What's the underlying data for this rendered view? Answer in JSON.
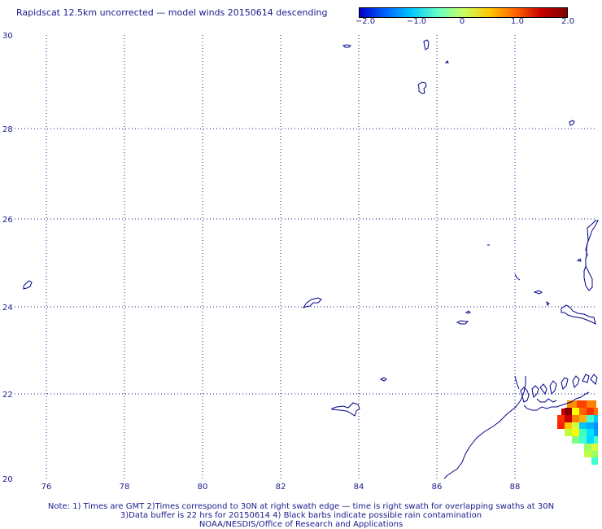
{
  "title": "Rapidscat 12.5km uncorrected — model winds 20150614 descending",
  "colorbar": {
    "ticks": [
      "−2.0",
      "−1.0",
      "0",
      "1.0",
      "2.0"
    ],
    "colors": [
      "#0000c8",
      "#0064ff",
      "#00c8ff",
      "#64ffc8",
      "#c8ff64",
      "#ffc800",
      "#ff6400",
      "#c80000",
      "#800000"
    ]
  },
  "map": {
    "lat_labels": [
      "30",
      "28",
      "26",
      "24",
      "22",
      "20"
    ],
    "lon_labels": [
      "76",
      "78",
      "80",
      "82",
      "84",
      "86",
      "88"
    ],
    "coast_color": "#00008b",
    "grid_color": "#1a1a8c"
  },
  "footer": {
    "line1": "Note: 1) Times are GMT 2)Times correspond to 30N at right swath edge — time is right swath for overlapping swaths at 30N",
    "line2": "3)Data buffer is 22 hrs for 20150614 4) Black barbs indicate possible rain contamination",
    "line3": "NOAA/NESDIS/Office of Research and Applications"
  }
}
